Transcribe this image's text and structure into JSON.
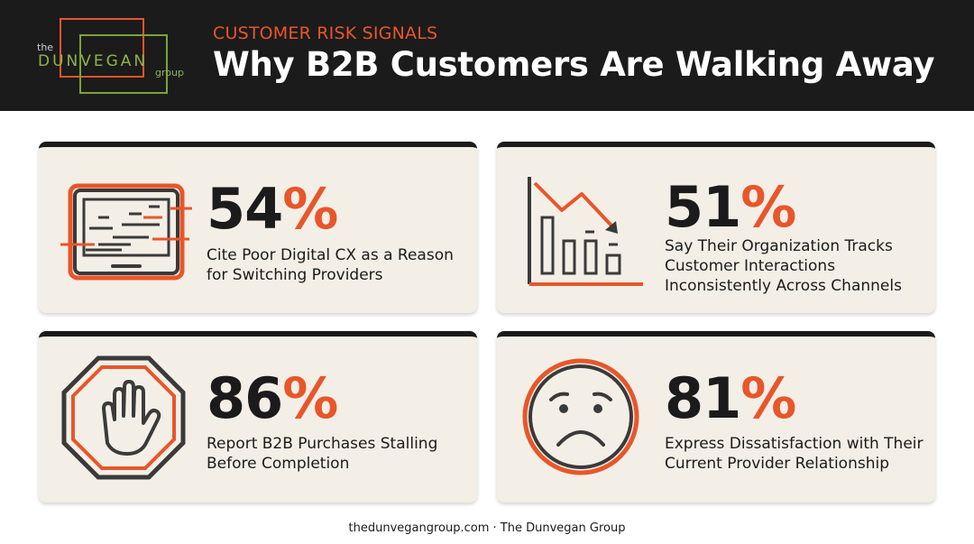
{
  "header": {
    "logo": {
      "the": "the",
      "name": "DUNVEGAN",
      "group": "group"
    },
    "kicker": "CUSTOMER RISK SIGNALS",
    "title": "Why B2B Customers Are Walking Away"
  },
  "colors": {
    "accent": "#e8562a",
    "dark": "#1b1b1b",
    "card": "#f3efe7",
    "logo_green": "#7aa33c"
  },
  "cards": [
    {
      "icon": "glitched-monitor-icon",
      "value": "54",
      "unit": "%",
      "text": "Cite Poor Digital CX as a Reason for Switching Providers"
    },
    {
      "icon": "declining-bar-chart-icon",
      "value": "51",
      "unit": "%",
      "text": "Say Their Organization Tracks Customer Interactions Inconsistently Across Channels"
    },
    {
      "icon": "stop-hand-icon",
      "value": "86",
      "unit": "%",
      "text": "Report B2B Purchases Stalling Before Completion"
    },
    {
      "icon": "sad-face-icon",
      "value": "81",
      "unit": "%",
      "text": "Express Dissatisfaction with Their Current Provider Relationship"
    }
  ],
  "footer": "thedunvegangroup.com · The Dunvegan Group"
}
